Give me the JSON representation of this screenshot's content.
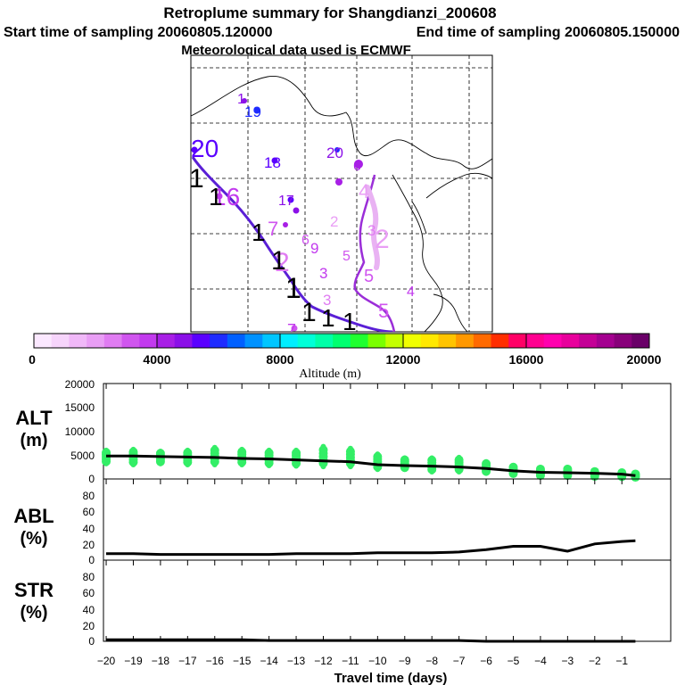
{
  "header": {
    "title": "Retroplume summary for Shangdianzi_200608",
    "start": "Start time of sampling 20060805.120000",
    "end": "End time of sampling 20060805.150000",
    "met": "Meteorological data used is ECMWF"
  },
  "colors": {
    "trajectory": "#5a1fd6",
    "alt_points": "#33ee66",
    "line": "#000000",
    "grid": "#000000",
    "colorbar": [
      "#fbe8ff",
      "#f6d4fb",
      "#f0b8f8",
      "#e99ef5",
      "#e07cf2",
      "#d055ef",
      "#c23aee",
      "#a81fe6",
      "#8b10e8",
      "#5a00ff",
      "#1e2bff",
      "#0060ff",
      "#0092ff",
      "#00c6ff",
      "#00eeff",
      "#00ffd8",
      "#00ffa8",
      "#00ff70",
      "#20ff30",
      "#7aff00",
      "#c4ff00",
      "#f0ff00",
      "#ffe800",
      "#ffc400",
      "#ff9800",
      "#ff6a00",
      "#ff2e00",
      "#ff0066",
      "#ff0090",
      "#ff00ae",
      "#e8009c",
      "#c40096",
      "#a40090",
      "#88007a",
      "#6a0068"
    ]
  },
  "map": {
    "labels": [
      {
        "t": "1",
        "c": "#8b10e8"
      },
      {
        "t": "19",
        "c": "#1e2bff"
      },
      {
        "t": "20",
        "c": "#5a00ff"
      },
      {
        "t": "18",
        "c": "#5a00ff"
      },
      {
        "t": "20",
        "c": "#8b10e8"
      },
      {
        "t": "6",
        "c": "#a81fe6"
      },
      {
        "t": "17",
        "c": "#8b10e8"
      },
      {
        "t": "16",
        "c": "#c23aee"
      },
      {
        "t": "7",
        "c": "#d055ef"
      },
      {
        "t": "4",
        "c": "#e99ef5"
      },
      {
        "t": "2",
        "c": "#e99ef5"
      },
      {
        "t": "3",
        "c": "#e07cf2"
      },
      {
        "t": "6",
        "c": "#d055ef"
      },
      {
        "t": "9",
        "c": "#c23aee"
      },
      {
        "t": "5",
        "c": "#d055ef"
      },
      {
        "t": "3",
        "c": "#c23aee"
      },
      {
        "t": "5",
        "c": "#d055ef"
      },
      {
        "t": "2",
        "c": "#e07cf2"
      },
      {
        "t": "4",
        "c": "#c23aee"
      },
      {
        "t": "7",
        "c": "#c23aee"
      },
      {
        "t": "3",
        "c": "#e07cf2"
      },
      {
        "t": "2",
        "c": "#e99ef5"
      },
      {
        "t": "5",
        "c": "#d055ef"
      }
    ]
  },
  "colorbar": {
    "ticks": [
      "0",
      "4000",
      "8000",
      "12000",
      "16000",
      "20000"
    ],
    "label": "Altitude (m)"
  },
  "chart_data": [
    {
      "type": "scatter",
      "name": "ALT",
      "ylabel": "ALT (m)",
      "yticks": [
        "20000",
        "15000",
        "10000",
        "5000",
        "0"
      ],
      "ylim": [
        0,
        20000
      ],
      "x": [
        -20,
        -19,
        -18,
        -17,
        -16,
        -15,
        -14,
        -13,
        -12,
        -11,
        -10,
        -9,
        -8,
        -7,
        -6,
        -5,
        -4,
        -3,
        -2,
        -1,
        -0.5
      ],
      "median_altitude_m": [
        4800,
        4800,
        4700,
        4600,
        4500,
        4300,
        4200,
        4000,
        3800,
        3600,
        3000,
        2800,
        2700,
        2500,
        2200,
        1700,
        1400,
        1300,
        1200,
        1000,
        700
      ],
      "point_spread_m": [
        [
          3200,
          6000
        ],
        [
          3000,
          6200
        ],
        [
          3200,
          5800
        ],
        [
          3000,
          6000
        ],
        [
          3000,
          6600
        ],
        [
          3000,
          6200
        ],
        [
          2800,
          6000
        ],
        [
          2700,
          6000
        ],
        [
          2600,
          6800
        ],
        [
          2600,
          6400
        ],
        [
          2000,
          5200
        ],
        [
          2000,
          4400
        ],
        [
          1500,
          4400
        ],
        [
          1500,
          4500
        ],
        [
          1200,
          3600
        ],
        [
          800,
          2800
        ],
        [
          400,
          2400
        ],
        [
          400,
          2400
        ],
        [
          300,
          1800
        ],
        [
          300,
          1500
        ],
        [
          200,
          1200
        ]
      ]
    },
    {
      "type": "line",
      "name": "ABL",
      "ylabel": "ABL (%)",
      "yticks": [
        "80",
        "60",
        "40",
        "20",
        "0"
      ],
      "ylim": [
        0,
        100
      ],
      "x": [
        -20,
        -19,
        -18,
        -17,
        -16,
        -15,
        -14,
        -13,
        -12,
        -11,
        -10,
        -9,
        -8,
        -7,
        -6,
        -5,
        -4,
        -3,
        -2,
        -1,
        -0.5
      ],
      "y": [
        8,
        8,
        7,
        7,
        7,
        7,
        7,
        8,
        8,
        8,
        9,
        9,
        9,
        10,
        13,
        17,
        17,
        11,
        20,
        23,
        24
      ]
    },
    {
      "type": "line",
      "name": "STR",
      "ylabel": "STR (%)",
      "yticks": [
        "80",
        "60",
        "40",
        "20",
        "0"
      ],
      "ylim": [
        0,
        100
      ],
      "x": [
        -20,
        -19,
        -18,
        -17,
        -16,
        -15,
        -14,
        -13,
        -12,
        -11,
        -10,
        -9,
        -8,
        -7,
        -6,
        -5,
        -4,
        -3,
        -2,
        -1,
        -0.5
      ],
      "y": [
        2,
        2,
        2,
        2,
        2,
        2,
        1,
        1,
        1,
        1,
        1,
        1,
        1,
        1,
        0,
        0,
        0,
        0,
        0,
        0,
        0
      ]
    }
  ],
  "xaxis": {
    "ticks": [
      "−20",
      "−19",
      "−18",
      "−17",
      "−16",
      "−15",
      "−14",
      "−13",
      "−12",
      "−11",
      "−10",
      "−9",
      "−8",
      "−7",
      "−6",
      "−5",
      "−4",
      "−3",
      "−2",
      "−1"
    ],
    "label": "Travel time (days)",
    "xlim": [
      -20.1,
      0.8
    ]
  }
}
